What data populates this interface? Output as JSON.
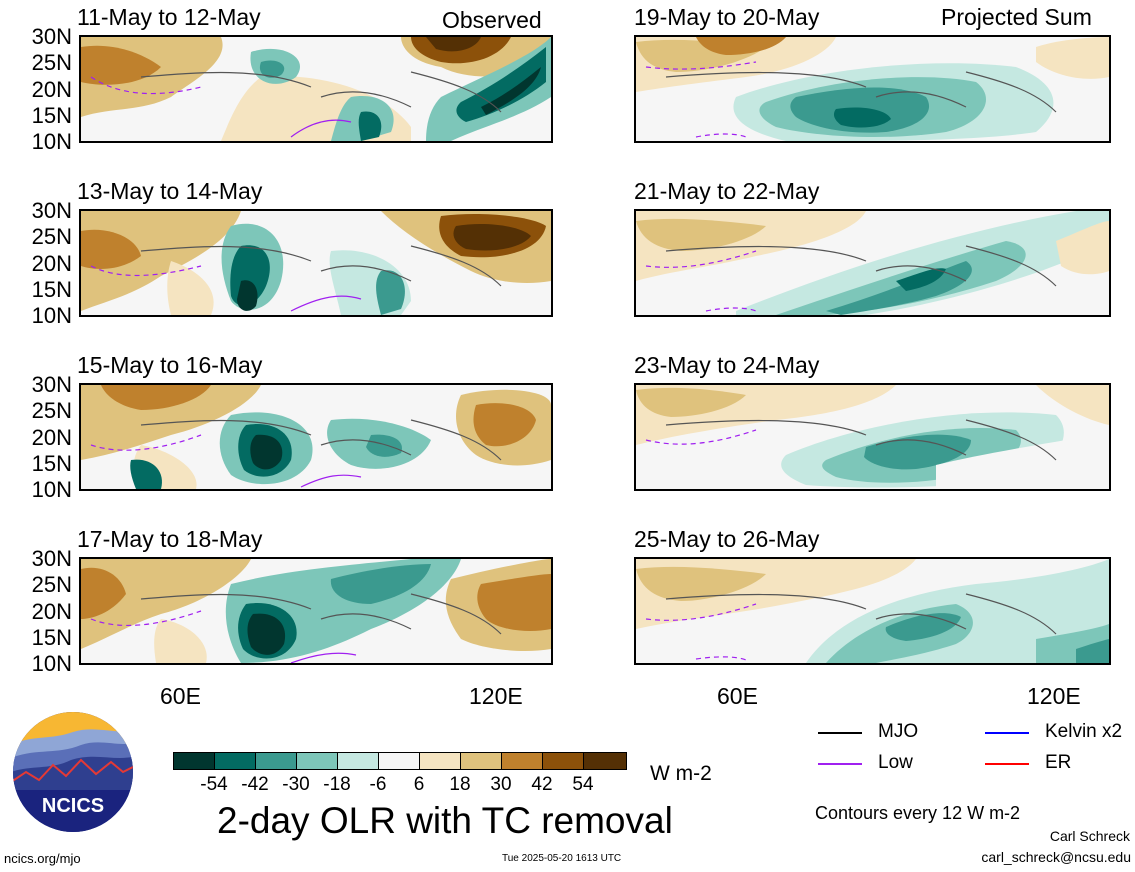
{
  "figure_title": "2-day OLR with TC removal",
  "column_headers": {
    "left": "Observed",
    "right": "Projected Sum"
  },
  "panels_left": [
    {
      "period": "11-May to 12-May"
    },
    {
      "period": "13-May to 14-May"
    },
    {
      "period": "15-May to 16-May"
    },
    {
      "period": "17-May to 18-May"
    }
  ],
  "panels_right": [
    {
      "period": "19-May to 20-May"
    },
    {
      "period": "21-May to 22-May"
    },
    {
      "period": "23-May to 24-May"
    },
    {
      "period": "25-May to 26-May"
    }
  ],
  "lat_labels": [
    "30N",
    "25N",
    "20N",
    "15N",
    "10N"
  ],
  "lon_labels": [
    "60E",
    "120E"
  ],
  "colorbar": {
    "ticks": [
      "-54",
      "-42",
      "-30",
      "-18",
      "-6",
      "6",
      "18",
      "30",
      "42",
      "54"
    ],
    "units": "W m-2",
    "colors": [
      "#01362f",
      "#036b62",
      "#3b9a8f",
      "#7dc6b9",
      "#c5e8e1",
      "#f6f6f6",
      "#f5e4c1",
      "#dfc27d",
      "#bf812d",
      "#8c510a",
      "#543005"
    ]
  },
  "legend": {
    "items": [
      {
        "label": "MJO",
        "color": "#000000"
      },
      {
        "label": "Kelvin x2",
        "color": "#0000ff"
      },
      {
        "label": "Low",
        "color": "#a020f0"
      },
      {
        "label": "ER",
        "color": "#ff0000"
      }
    ],
    "contour_note": "Contours every 12 W m-2"
  },
  "logo_text": "NCICS",
  "footer": {
    "url": "ncics.org/mjo",
    "timestamp": "Tue 2025-05-20 1613 UTC",
    "author": "Carl Schreck",
    "email": "carl_schreck@ncsu.edu"
  }
}
